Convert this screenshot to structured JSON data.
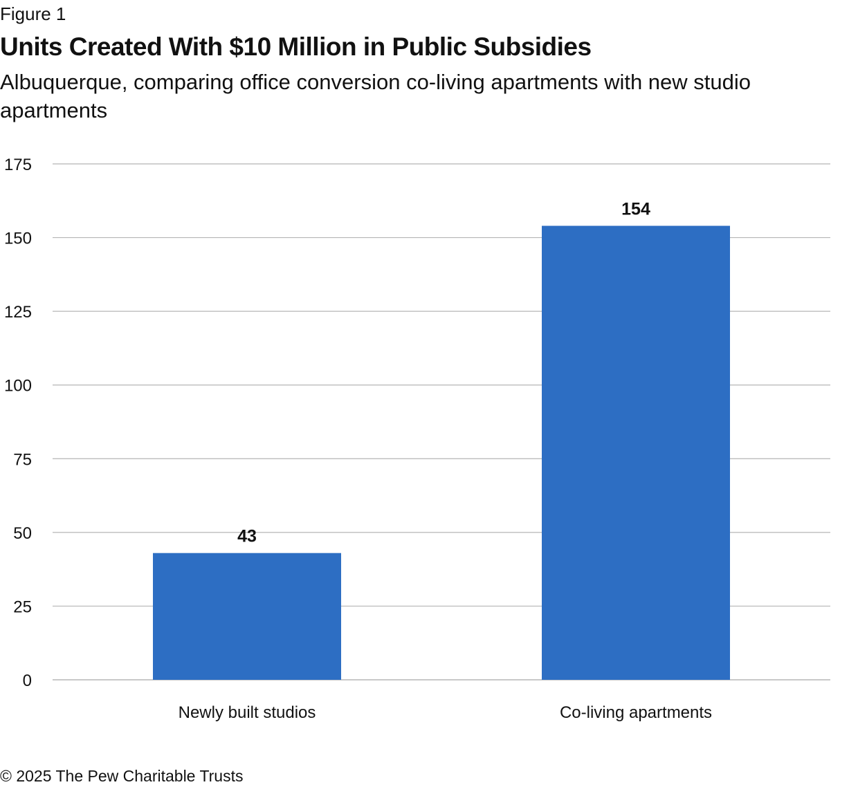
{
  "figure": {
    "label": "Figure 1",
    "title": "Units Created With $10 Million in Public Subsidies",
    "subtitle": "Albuquerque, comparing office conversion co-living apartments with new studio apartments"
  },
  "chart_data": {
    "type": "bar",
    "title": "Units Created With $10 Million in Public Subsidies",
    "subtitle": "Albuquerque, comparing office conversion co-living apartments with new studio apartments",
    "categories": [
      "Newly built studios",
      "Co-living apartments"
    ],
    "values": [
      43,
      154
    ],
    "data_labels": [
      "43",
      "154"
    ],
    "xlabel": "",
    "ylabel": "",
    "ylim": [
      0,
      175
    ],
    "yticks": [
      0,
      25,
      50,
      75,
      100,
      125,
      150,
      175
    ],
    "grid": true,
    "legend": "none",
    "bar_color": "#2d6ec3",
    "grid_color": "#b5b5b5"
  },
  "footer": {
    "copyright": "© 2025 The Pew Charitable Trusts"
  }
}
